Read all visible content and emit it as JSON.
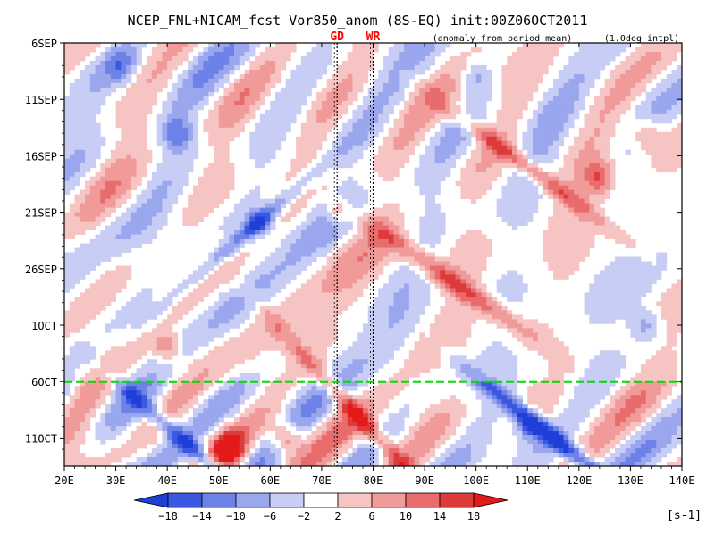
{
  "chart_data": {
    "type": "heatmap",
    "title": "NCEP_FNL+NICAM_fcst Vor850_anom (8S-EQ) init:00Z06OCT2011",
    "note_left": "(anomaly from period mean)",
    "note_right": "(1.0deg intpl)",
    "x_axis": {
      "range": [
        20,
        140
      ],
      "ticks": [
        "20E",
        "30E",
        "40E",
        "50E",
        "60E",
        "70E",
        "80E",
        "90E",
        "100E",
        "110E",
        "120E",
        "130E",
        "140E"
      ],
      "tick_values": [
        20,
        30,
        40,
        50,
        60,
        70,
        80,
        90,
        100,
        110,
        120,
        130,
        140
      ]
    },
    "y_axis": {
      "direction": "time increasing downward",
      "ticks": [
        "6SEP",
        "11SEP",
        "16SEP",
        "21SEP",
        "26SEP",
        "1OCT",
        "6OCT",
        "11OCT"
      ],
      "tick_days": [
        0,
        5,
        10,
        15,
        20,
        25,
        30,
        35
      ],
      "range_days": [
        0,
        37.5
      ]
    },
    "reference_lines": [
      {
        "label": "GD",
        "x": 73,
        "style": "dotted",
        "color": "#ff0000"
      },
      {
        "label": "WR",
        "x": 80,
        "style": "dotted",
        "color": "#ff0000"
      }
    ],
    "forecast_init_line": {
      "label": "6OCT",
      "day": 30,
      "color": "#00dd00"
    },
    "colorbar": {
      "levels": [
        "−18",
        "−14",
        "−10",
        "−6",
        "−2",
        "2",
        "6",
        "10",
        "14",
        "18"
      ],
      "unit": "[s-1]",
      "colors": [
        "#1f3fd6",
        "#3b58e0",
        "#6d82e6",
        "#9aa6ee",
        "#c8cdf5",
        "#ffffff",
        "#f7c4c4",
        "#f09a9a",
        "#e86c6c",
        "#dd3b3b",
        "#e41a1a"
      ]
    }
  }
}
